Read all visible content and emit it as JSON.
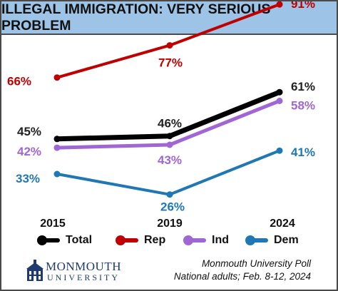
{
  "title": "ILLEGAL IMMIGRATION: VERY SERIOUS PROBLEM",
  "chart_data": {
    "type": "line",
    "title": "ILLEGAL IMMIGRATION: VERY SERIOUS PROBLEM",
    "categories": [
      "2015",
      "2019",
      "2024"
    ],
    "xlabel": "",
    "ylabel": "",
    "ylim": [
      20,
      95
    ],
    "grid": false,
    "legend_position": "bottom",
    "series": [
      {
        "name": "Total",
        "values": [
          45,
          46,
          61
        ],
        "labels": [
          "45%",
          "46%",
          "61%"
        ],
        "color": "#000000"
      },
      {
        "name": "Rep",
        "values": [
          66,
          77,
          91
        ],
        "labels": [
          "66%",
          "77%",
          "91%"
        ],
        "color": "#c00000"
      },
      {
        "name": "Ind",
        "values": [
          42,
          43,
          58
        ],
        "labels": [
          "42%",
          "43%",
          "58%"
        ],
        "color": "#a066d3"
      },
      {
        "name": "Dem",
        "values": [
          33,
          26,
          41
        ],
        "labels": [
          "33%",
          "26%",
          "41%"
        ],
        "color": "#1f77b4"
      }
    ]
  },
  "logo": {
    "name": "MONMOUTH",
    "sub": "UNIVERSITY"
  },
  "source": {
    "line1": "Monmouth University Poll",
    "line2": "National adults; Feb. 8-12, 2024"
  }
}
